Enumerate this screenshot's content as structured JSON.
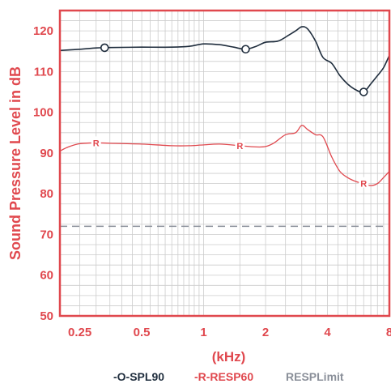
{
  "chart_data": {
    "type": "line",
    "ylabel": "Sound Pressure Level in dB",
    "xlabel": "(kHz)",
    "x_scale": "log",
    "xlim": [
      0.2,
      8
    ],
    "ylim": [
      50,
      125
    ],
    "yticks": [
      "50",
      "60",
      "70",
      "80",
      "90",
      "100",
      "110",
      "120"
    ],
    "xticks": [
      {
        "value": 0.25,
        "label": "0.25"
      },
      {
        "value": 0.5,
        "label": "0.5"
      },
      {
        "value": 1,
        "label": "1"
      },
      {
        "value": 2,
        "label": "2"
      },
      {
        "value": 4,
        "label": "4"
      },
      {
        "value": 8,
        "label": "8"
      }
    ],
    "grid": true,
    "colors": {
      "frame": "#e0484e",
      "grid": "#cccccc",
      "spl90": "#1f2d3d",
      "resp60": "#e0484e",
      "limit": "#8a8f99"
    },
    "series": [
      {
        "name": "-O-SPL90",
        "marker": "O",
        "markers_x": [
          0.33,
          1.6,
          6.0
        ],
        "x": [
          0.2,
          0.25,
          0.3,
          0.35,
          0.5,
          0.7,
          0.85,
          1.0,
          1.2,
          1.4,
          1.6,
          1.8,
          2.0,
          2.3,
          2.6,
          2.8,
          3.0,
          3.2,
          3.5,
          3.8,
          4.2,
          4.6,
          5.0,
          5.5,
          6.0,
          6.5,
          7.0,
          7.5,
          8.0
        ],
        "y": [
          115.2,
          115.5,
          115.8,
          115.9,
          116.0,
          116.0,
          116.2,
          116.8,
          116.6,
          116.0,
          115.5,
          116.2,
          117.2,
          117.5,
          119.0,
          120.0,
          121.0,
          120.5,
          117.5,
          113.5,
          112.0,
          109.0,
          107.0,
          105.5,
          105.0,
          107.0,
          109.0,
          111.0,
          114.0
        ]
      },
      {
        "name": "-R-RESP60",
        "marker": "R",
        "markers_x": [
          0.3,
          1.5,
          6.0
        ],
        "x": [
          0.2,
          0.22,
          0.25,
          0.3,
          0.35,
          0.5,
          0.7,
          0.85,
          1.0,
          1.2,
          1.5,
          1.8,
          2.0,
          2.2,
          2.5,
          2.8,
          3.0,
          3.2,
          3.5,
          3.8,
          4.2,
          4.6,
          5.0,
          5.5,
          6.0,
          6.5,
          7.0,
          7.5,
          8.0
        ],
        "y": [
          90.5,
          91.5,
          92.3,
          92.5,
          92.4,
          92.2,
          91.8,
          91.8,
          92.0,
          92.2,
          91.8,
          91.5,
          91.6,
          92.5,
          94.5,
          95.0,
          96.8,
          95.8,
          94.5,
          94.0,
          89.0,
          85.5,
          84.0,
          83.0,
          82.5,
          82.0,
          82.5,
          84.0,
          85.5
        ]
      },
      {
        "name": "RESPLimit",
        "style": "dashed",
        "x": [
          0.2,
          8
        ],
        "y": [
          72,
          72
        ]
      }
    ]
  }
}
